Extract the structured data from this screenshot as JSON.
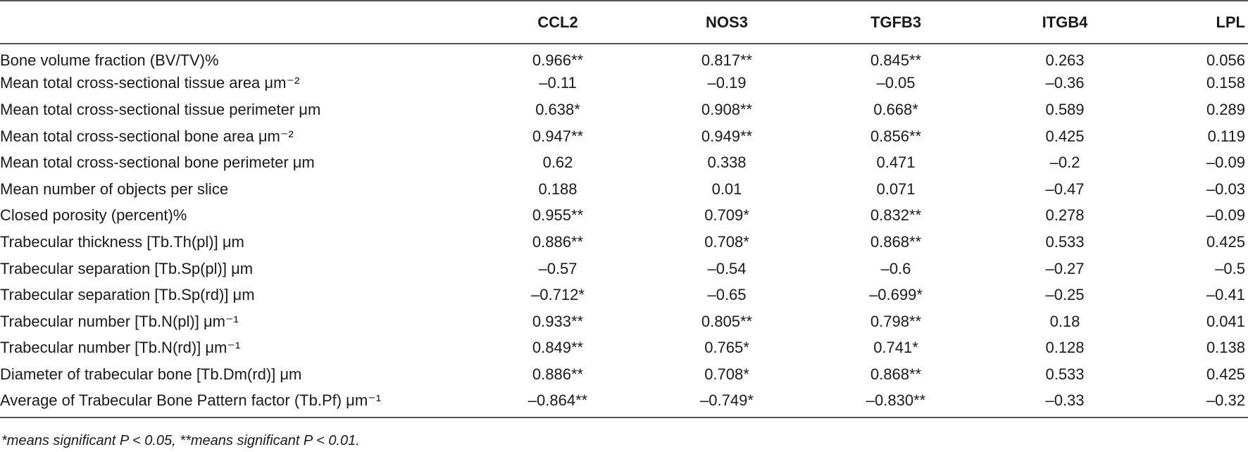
{
  "table": {
    "headers": [
      "",
      "CCL2",
      "NOS3",
      "TGFB3",
      "ITGB4",
      "LPL"
    ],
    "rows": [
      {
        "label": "Bone volume fraction (BV/TV)%",
        "values": [
          "0.966**",
          "0.817**",
          "0.845**",
          "0.263",
          "0.056"
        ]
      },
      {
        "label": "Mean total cross-sectional tissue area μm⁻²",
        "values": [
          "–0.11",
          "–0.19",
          "–0.05",
          "–0.36",
          "0.158"
        ]
      },
      {
        "label": "Mean total cross-sectional tissue perimeter μm",
        "values": [
          "0.638*",
          "0.908**",
          "0.668*",
          "0.589",
          "0.289"
        ]
      },
      {
        "label": "Mean total cross-sectional bone area μm⁻²",
        "values": [
          "0.947**",
          "0.949**",
          "0.856**",
          "0.425",
          "0.119"
        ]
      },
      {
        "label": "Mean total cross-sectional bone perimeter μm",
        "values": [
          "0.62",
          "0.338",
          "0.471",
          "–0.2",
          "–0.09"
        ]
      },
      {
        "label": "Mean number of objects per slice",
        "values": [
          "0.188",
          "0.01",
          "0.071",
          "–0.47",
          "–0.03"
        ]
      },
      {
        "label": "Closed porosity (percent)%",
        "values": [
          "0.955**",
          "0.709*",
          "0.832**",
          "0.278",
          "–0.09"
        ]
      },
      {
        "label": "Trabecular thickness [Tb.Th(pl)] μm",
        "values": [
          "0.886**",
          "0.708*",
          "0.868**",
          "0.533",
          "0.425"
        ]
      },
      {
        "label": "Trabecular separation [Tb.Sp(pl)] μm",
        "values": [
          "–0.57",
          "–0.54",
          "–0.6",
          "–0.27",
          "–0.5"
        ]
      },
      {
        "label": "Trabecular separation [Tb.Sp(rd)] μm",
        "values": [
          "–0.712*",
          "–0.65",
          "–0.699*",
          "–0.25",
          "–0.41"
        ]
      },
      {
        "label": "Trabecular number [Tb.N(pl)] μm⁻¹",
        "values": [
          "0.933**",
          "0.805**",
          "0.798**",
          "0.18",
          "0.041"
        ]
      },
      {
        "label": "Trabecular number [Tb.N(rd)] μm⁻¹",
        "values": [
          "0.849**",
          "0.765*",
          "0.741*",
          "0.128",
          "0.138"
        ]
      },
      {
        "label": "Diameter of trabecular bone [Tb.Dm(rd)] μm",
        "values": [
          "0.886**",
          "0.708*",
          "0.868**",
          "0.533",
          "0.425"
        ]
      },
      {
        "label": "Average of Trabecular Bone Pattern factor (Tb.Pf) μm⁻¹",
        "values": [
          "–0.864**",
          "–0.749*",
          "–0.830**",
          "–0.33",
          "–0.32"
        ]
      }
    ]
  },
  "footnote": "*means significant P < 0.05, **means significant P < 0.01."
}
